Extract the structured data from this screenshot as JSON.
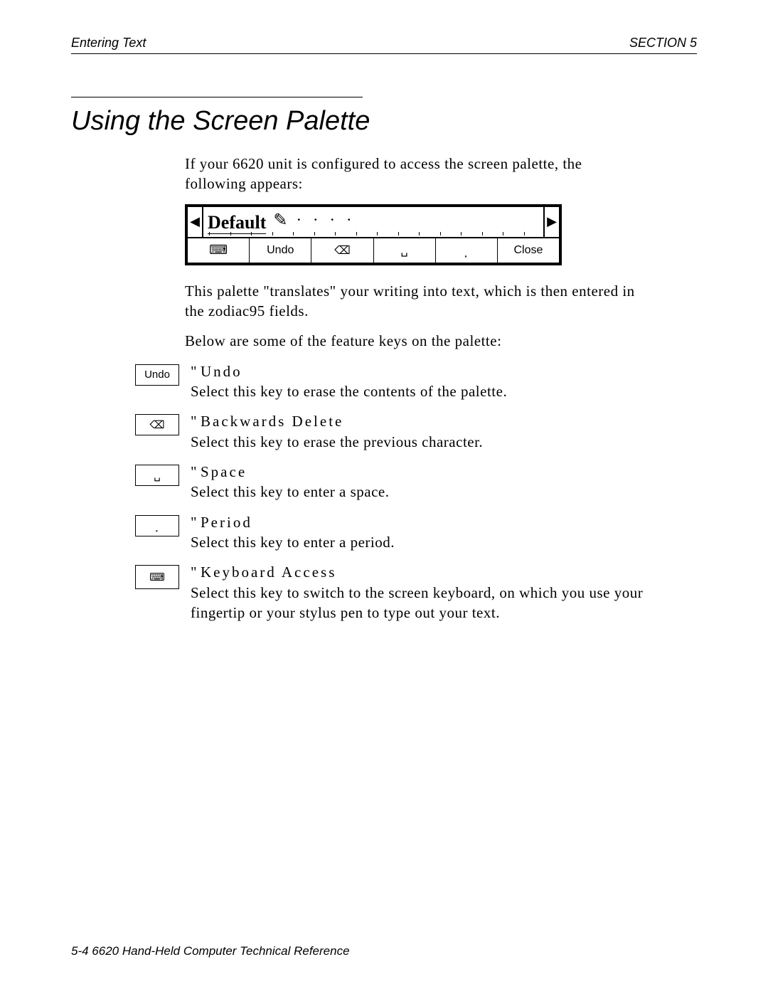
{
  "header": {
    "left": "Entering Text",
    "right": "SECTION 5"
  },
  "title": "Using the Screen Palette",
  "intro": "If your 6620 unit is configured to access the screen palette, the following appears:",
  "palette": {
    "letters": "Default",
    "buttons": {
      "keyboard_icon": "⌨",
      "undo": "Undo",
      "backspace": "⌫",
      "space": "␣",
      "period": "⸼",
      "close": "Close"
    }
  },
  "after_palette_1": "This palette \"translates\" your writing into text, which is then entered in the zodiac95 fields.",
  "after_palette_2": "Below are some of the feature keys on the palette:",
  "features": [
    {
      "cap": "Undo",
      "cap_type": "text",
      "name": "Undo",
      "desc": "Select this key to erase the contents of the palette."
    },
    {
      "cap": "⌫",
      "cap_type": "icon",
      "name": "Backwards Delete",
      "desc": "Select this key to erase the previous character."
    },
    {
      "cap": "␣",
      "cap_type": "icon",
      "name": "Space",
      "desc": "Select this key to enter a space."
    },
    {
      "cap": "⸼",
      "cap_type": "icon",
      "name": "Period",
      "desc": "Select this key to enter a period."
    },
    {
      "cap": "⌨",
      "cap_type": "icon",
      "name": "Keyboard Access",
      "desc": "Select this key to switch to the screen keyboard, on which you use your fingertip or your stylus pen to type out your text."
    }
  ],
  "footer": "5-4    6620 Hand-Held Computer Technical Reference"
}
